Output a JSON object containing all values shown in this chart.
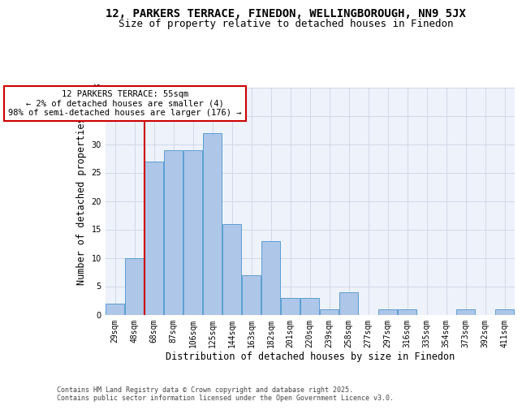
{
  "title_line1": "12, PARKERS TERRACE, FINEDON, WELLINGBOROUGH, NN9 5JX",
  "title_line2": "Size of property relative to detached houses in Finedon",
  "xlabel": "Distribution of detached houses by size in Finedon",
  "ylabel": "Number of detached properties",
  "categories": [
    "29sqm",
    "48sqm",
    "68sqm",
    "87sqm",
    "106sqm",
    "125sqm",
    "144sqm",
    "163sqm",
    "182sqm",
    "201sqm",
    "220sqm",
    "239sqm",
    "258sqm",
    "277sqm",
    "297sqm",
    "316sqm",
    "335sqm",
    "354sqm",
    "373sqm",
    "392sqm",
    "411sqm"
  ],
  "values": [
    2,
    10,
    27,
    29,
    29,
    32,
    16,
    7,
    13,
    3,
    3,
    1,
    4,
    0,
    1,
    1,
    0,
    0,
    1,
    0,
    1
  ],
  "bar_color": "#aec6e8",
  "bar_edge_color": "#5a9fd4",
  "annotation_text": "12 PARKERS TERRACE: 55sqm\n← 2% of detached houses are smaller (4)\n98% of semi-detached houses are larger (176) →",
  "annotation_box_color": "#ffffff",
  "annotation_box_edge_color": "#cc0000",
  "vline_color": "#cc0000",
  "ylim": [
    0,
    40
  ],
  "yticks": [
    0,
    5,
    10,
    15,
    20,
    25,
    30,
    35,
    40
  ],
  "grid_color": "#d0d8e8",
  "background_color": "#eef2fa",
  "footer_text": "Contains HM Land Registry data © Crown copyright and database right 2025.\nContains public sector information licensed under the Open Government Licence v3.0.",
  "title_fontsize": 10,
  "subtitle_fontsize": 9,
  "axis_label_fontsize": 8.5,
  "tick_fontsize": 7,
  "annotation_fontsize": 7.5,
  "footer_fontsize": 6
}
